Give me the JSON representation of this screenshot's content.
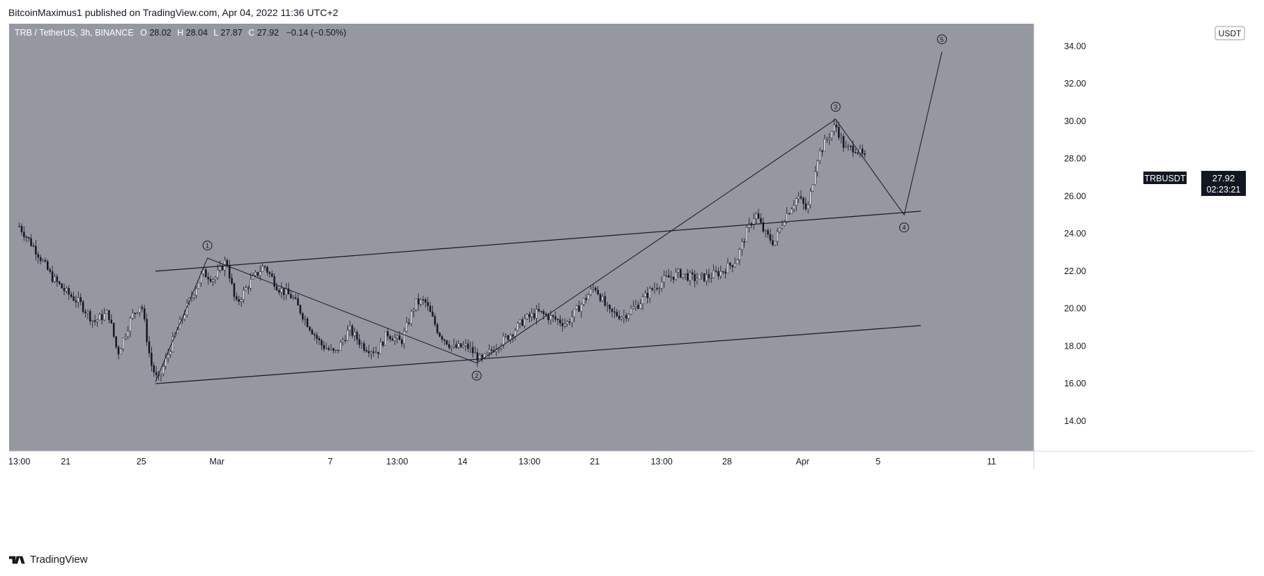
{
  "header": {
    "publisher_text": "BitcoinMaximus1 published on TradingView.com, Apr 04, 2022 11:36 UTC+2"
  },
  "legend": {
    "symbol": "TRB / TetherUS, 3h, BINANCE",
    "o_label": "O",
    "o_value": "28.02",
    "h_label": "H",
    "h_value": "28.04",
    "l_label": "L",
    "l_value": "27.87",
    "c_label": "C",
    "c_value": "27.92",
    "change": "−0.14 (−0.50%)"
  },
  "currency_badge": "USDT",
  "price_tag": {
    "symbol": "TRBUSDT",
    "price": "27.92",
    "countdown": "02:23:21"
  },
  "footer": {
    "brand": "TradingView"
  },
  "colors": {
    "plot_bg": "#9598a1",
    "axis_bg": "#ffffff",
    "line": "#131722",
    "tag_bg": "#131722",
    "tag_text": "#ffffff"
  },
  "chart_data": {
    "type": "candlestick",
    "interval": "3h",
    "y_ticks": [
      "14.00",
      "16.00",
      "18.00",
      "20.00",
      "22.00",
      "24.00",
      "26.00",
      "28.00",
      "30.00",
      "32.00",
      "34.00"
    ],
    "ylim": [
      12.4,
      35.2
    ],
    "x_ticks": [
      {
        "label": "13:00",
        "date": "2022-02-18T13:00"
      },
      {
        "label": "21",
        "date": "2022-02-21"
      },
      {
        "label": "25",
        "date": "2022-02-25"
      },
      {
        "label": "Mar",
        "date": "2022-03-01"
      },
      {
        "label": "7",
        "date": "2022-03-07"
      },
      {
        "label": "13:00",
        "date": "2022-03-10T13:00"
      },
      {
        "label": "14",
        "date": "2022-03-14"
      },
      {
        "label": "13:00",
        "date": "2022-03-17T13:00"
      },
      {
        "label": "21",
        "date": "2022-03-21"
      },
      {
        "label": "13:00",
        "date": "2022-03-24T13:00"
      },
      {
        "label": "28",
        "date": "2022-03-28"
      },
      {
        "label": "Apr",
        "date": "2022-04-01"
      },
      {
        "label": "5",
        "date": "2022-04-05"
      },
      {
        "label": "11",
        "date": "2022-04-11"
      }
    ],
    "price_path": [
      {
        "date": "2022-02-18T13:00",
        "close": 24.4
      },
      {
        "date": "2022-02-19T12:00",
        "close": 23.0
      },
      {
        "date": "2022-02-20T06:00",
        "close": 21.7
      },
      {
        "date": "2022-02-21T00:00",
        "close": 20.9
      },
      {
        "date": "2022-02-21T18:00",
        "close": 20.3
      },
      {
        "date": "2022-02-22T12:00",
        "close": 19.3
      },
      {
        "date": "2022-02-23T06:00",
        "close": 19.8
      },
      {
        "date": "2022-02-23T18:00",
        "close": 17.6
      },
      {
        "date": "2022-02-24T12:00",
        "close": 19.6
      },
      {
        "date": "2022-02-25T00:00",
        "close": 20.3
      },
      {
        "date": "2022-02-25T12:00",
        "close": 17.1
      },
      {
        "date": "2022-02-25T21:00",
        "close": 16.1
      },
      {
        "date": "2022-02-26T18:00",
        "close": 18.5
      },
      {
        "date": "2022-02-27T12:00",
        "close": 20.3
      },
      {
        "date": "2022-02-28T06:00",
        "close": 21.9
      },
      {
        "date": "2022-02-28T21:00",
        "close": 21.6
      },
      {
        "date": "2022-03-01T12:00",
        "close": 22.6
      },
      {
        "date": "2022-03-02T00:00",
        "close": 20.2
      },
      {
        "date": "2022-03-02T18:00",
        "close": 21.4
      },
      {
        "date": "2022-03-03T12:00",
        "close": 22.3
      },
      {
        "date": "2022-03-04T06:00",
        "close": 21.1
      },
      {
        "date": "2022-03-05T00:00",
        "close": 20.6
      },
      {
        "date": "2022-03-05T18:00",
        "close": 19.3
      },
      {
        "date": "2022-03-06T12:00",
        "close": 18.1
      },
      {
        "date": "2022-03-07T06:00",
        "close": 17.6
      },
      {
        "date": "2022-03-08T00:00",
        "close": 18.9
      },
      {
        "date": "2022-03-08T18:00",
        "close": 18.0
      },
      {
        "date": "2022-03-09T12:00",
        "close": 17.7
      },
      {
        "date": "2022-03-10T00:00",
        "close": 18.7
      },
      {
        "date": "2022-03-10T18:00",
        "close": 18.2
      },
      {
        "date": "2022-03-11T12:00",
        "close": 20.3
      },
      {
        "date": "2022-03-12T00:00",
        "close": 20.4
      },
      {
        "date": "2022-03-12T18:00",
        "close": 18.7
      },
      {
        "date": "2022-03-13T12:00",
        "close": 17.9
      },
      {
        "date": "2022-03-14T06:00",
        "close": 18.0
      },
      {
        "date": "2022-03-15T00:00",
        "close": 17.2
      },
      {
        "date": "2022-03-15T18:00",
        "close": 18.0
      },
      {
        "date": "2022-03-16T12:00",
        "close": 18.6
      },
      {
        "date": "2022-03-17T06:00",
        "close": 19.4
      },
      {
        "date": "2022-03-18T00:00",
        "close": 19.8
      },
      {
        "date": "2022-03-18T18:00",
        "close": 19.5
      },
      {
        "date": "2022-03-19T12:00",
        "close": 19.2
      },
      {
        "date": "2022-03-20T06:00",
        "close": 20.2
      },
      {
        "date": "2022-03-21T00:00",
        "close": 21.2
      },
      {
        "date": "2022-03-21T18:00",
        "close": 19.8
      },
      {
        "date": "2022-03-22T12:00",
        "close": 19.6
      },
      {
        "date": "2022-03-23T06:00",
        "close": 20.2
      },
      {
        "date": "2022-03-24T00:00",
        "close": 21.0
      },
      {
        "date": "2022-03-24T18:00",
        "close": 21.6
      },
      {
        "date": "2022-03-25T12:00",
        "close": 21.9
      },
      {
        "date": "2022-03-26T06:00",
        "close": 21.6
      },
      {
        "date": "2022-03-27T00:00",
        "close": 21.7
      },
      {
        "date": "2022-03-27T18:00",
        "close": 22.0
      },
      {
        "date": "2022-03-28T12:00",
        "close": 22.6
      },
      {
        "date": "2022-03-29T00:00",
        "close": 24.0
      },
      {
        "date": "2022-03-29T12:00",
        "close": 25.1
      },
      {
        "date": "2022-03-30T00:00",
        "close": 24.0
      },
      {
        "date": "2022-03-30T12:00",
        "close": 23.5
      },
      {
        "date": "2022-03-31T00:00",
        "close": 24.8
      },
      {
        "date": "2022-03-31T18:00",
        "close": 26.0
      },
      {
        "date": "2022-04-01T06:00",
        "close": 25.2
      },
      {
        "date": "2022-04-01T18:00",
        "close": 28.0
      },
      {
        "date": "2022-04-02T06:00",
        "close": 29.0
      },
      {
        "date": "2022-04-02T18:00",
        "close": 29.8
      },
      {
        "date": "2022-04-03T06:00",
        "close": 28.5
      },
      {
        "date": "2022-04-03T18:00",
        "close": 28.6
      },
      {
        "date": "2022-04-04T09:00",
        "close": 27.92
      }
    ],
    "wave_path": [
      {
        "date": "2022-02-25T18:00",
        "price": 16.1
      },
      {
        "date": "2022-02-28T12:00",
        "price": 22.7
      },
      {
        "date": "2022-03-14T18:00",
        "price": 17.1
      },
      {
        "date": "2022-04-02T18:00",
        "price": 30.1
      },
      {
        "date": "2022-04-06T09:00",
        "price": 25.0
      },
      {
        "date": "2022-04-08T09:00",
        "price": 33.7
      }
    ],
    "wave_labels": [
      {
        "label": "1",
        "date": "2022-02-28T12:00",
        "price": 22.7,
        "position": "above"
      },
      {
        "label": "2",
        "date": "2022-03-14T18:00",
        "price": 17.1,
        "position": "below"
      },
      {
        "label": "3",
        "date": "2022-04-02T18:00",
        "price": 30.1,
        "position": "above"
      },
      {
        "label": "4",
        "date": "2022-04-06T09:00",
        "price": 25.0,
        "position": "below"
      },
      {
        "label": "5",
        "date": "2022-04-08T09:00",
        "price": 33.7,
        "position": "above"
      }
    ],
    "trend_lines": [
      {
        "name": "upper-channel",
        "from": {
          "date": "2022-02-25T18:00",
          "price": 22.0
        },
        "to": {
          "date": "2022-04-07T06:00",
          "price": 25.2
        }
      },
      {
        "name": "lower-channel",
        "from": {
          "date": "2022-02-25T18:00",
          "price": 16.0
        },
        "to": {
          "date": "2022-04-07T06:00",
          "price": 19.1
        }
      }
    ]
  }
}
